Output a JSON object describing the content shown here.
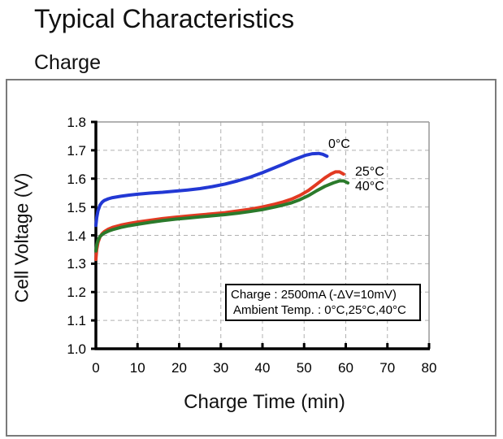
{
  "page": {
    "title": "Typical Characteristics",
    "subtitle": "Charge"
  },
  "chart_data": {
    "type": "line",
    "title": "",
    "xlabel": "Charge Time (min)",
    "ylabel": "Cell Voltage (V)",
    "xlim": [
      0,
      80
    ],
    "ylim": [
      1.0,
      1.8
    ],
    "x_ticks": [
      "0",
      "10",
      "20",
      "30",
      "40",
      "50",
      "60",
      "70",
      "80"
    ],
    "y_ticks": [
      "1.0",
      "1.1",
      "1.2",
      "1.3",
      "1.4",
      "1.5",
      "1.6",
      "1.7",
      "1.8"
    ],
    "grid": "dashed",
    "legend_position": "curve-end-labels",
    "colors": {
      "axis": "#000000",
      "grid": "#b0b0b0",
      "frame": "#999999",
      "series_0": "#2238d4",
      "series_1": "#e23a22",
      "series_2": "#2b7a2b"
    },
    "series": [
      {
        "name": "0°C",
        "color": "#2238d4",
        "points": [
          [
            0,
            1.435
          ],
          [
            0.2,
            1.462
          ],
          [
            0.5,
            1.487
          ],
          [
            1,
            1.507
          ],
          [
            1.5,
            1.517
          ],
          [
            2,
            1.523
          ],
          [
            3,
            1.529
          ],
          [
            4,
            1.533
          ],
          [
            6,
            1.538
          ],
          [
            8,
            1.542
          ],
          [
            10,
            1.545
          ],
          [
            13,
            1.549
          ],
          [
            16,
            1.552
          ],
          [
            19,
            1.556
          ],
          [
            22,
            1.56
          ],
          [
            25,
            1.565
          ],
          [
            28,
            1.572
          ],
          [
            31,
            1.581
          ],
          [
            34,
            1.592
          ],
          [
            37,
            1.605
          ],
          [
            40,
            1.621
          ],
          [
            43,
            1.639
          ],
          [
            45,
            1.651
          ],
          [
            47,
            1.664
          ],
          [
            49,
            1.675
          ],
          [
            50.5,
            1.683
          ],
          [
            52,
            1.688
          ],
          [
            53.5,
            1.689
          ],
          [
            54.5,
            1.686
          ],
          [
            55.5,
            1.679
          ]
        ]
      },
      {
        "name": "25°C",
        "color": "#e23a22",
        "points": [
          [
            0,
            1.315
          ],
          [
            0.2,
            1.35
          ],
          [
            0.5,
            1.375
          ],
          [
            1,
            1.395
          ],
          [
            1.5,
            1.406
          ],
          [
            2,
            1.413
          ],
          [
            3,
            1.422
          ],
          [
            4,
            1.428
          ],
          [
            6,
            1.436
          ],
          [
            8,
            1.442
          ],
          [
            10,
            1.447
          ],
          [
            13,
            1.453
          ],
          [
            16,
            1.459
          ],
          [
            19,
            1.464
          ],
          [
            22,
            1.468
          ],
          [
            25,
            1.472
          ],
          [
            28,
            1.476
          ],
          [
            31,
            1.48
          ],
          [
            34,
            1.486
          ],
          [
            37,
            1.492
          ],
          [
            40,
            1.5
          ],
          [
            43,
            1.51
          ],
          [
            45,
            1.518
          ],
          [
            47,
            1.528
          ],
          [
            49,
            1.541
          ],
          [
            51,
            1.558
          ],
          [
            53,
            1.58
          ],
          [
            55,
            1.603
          ],
          [
            56.5,
            1.617
          ],
          [
            57.5,
            1.624
          ],
          [
            58.5,
            1.624
          ],
          [
            59.5,
            1.616
          ]
        ]
      },
      {
        "name": "40°C",
        "color": "#2b7a2b",
        "points": [
          [
            0,
            1.345
          ],
          [
            0.2,
            1.366
          ],
          [
            0.5,
            1.383
          ],
          [
            1,
            1.396
          ],
          [
            1.5,
            1.403
          ],
          [
            2,
            1.408
          ],
          [
            3,
            1.415
          ],
          [
            4,
            1.42
          ],
          [
            6,
            1.428
          ],
          [
            8,
            1.434
          ],
          [
            10,
            1.439
          ],
          [
            13,
            1.446
          ],
          [
            16,
            1.452
          ],
          [
            19,
            1.457
          ],
          [
            22,
            1.461
          ],
          [
            25,
            1.465
          ],
          [
            28,
            1.469
          ],
          [
            31,
            1.473
          ],
          [
            34,
            1.478
          ],
          [
            37,
            1.484
          ],
          [
            40,
            1.491
          ],
          [
            43,
            1.5
          ],
          [
            45,
            1.507
          ],
          [
            47,
            1.515
          ],
          [
            49,
            1.526
          ],
          [
            51,
            1.54
          ],
          [
            53,
            1.557
          ],
          [
            55,
            1.573
          ],
          [
            57,
            1.585
          ],
          [
            58.5,
            1.592
          ],
          [
            59.5,
            1.592
          ],
          [
            60.5,
            1.585
          ]
        ]
      }
    ],
    "annotation": {
      "line1": "Charge : 2500mA (-ΔV=10mV)",
      "line2": "Ambient Temp. : 0°C,25°C,40°C"
    }
  }
}
